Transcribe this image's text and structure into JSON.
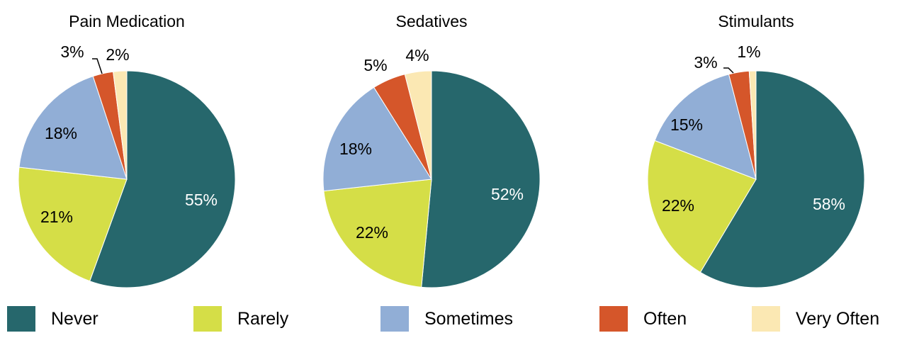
{
  "chart_data": [
    {
      "type": "pie",
      "title": "Pain Medication",
      "categories": [
        "Never",
        "Rarely",
        "Sometimes",
        "Often",
        "Very Often"
      ],
      "values": [
        55,
        21,
        18,
        3,
        2
      ],
      "labels": [
        "55%",
        "21%",
        "18%",
        "3%",
        "2%"
      ]
    },
    {
      "type": "pie",
      "title": "Sedatives",
      "categories": [
        "Never",
        "Rarely",
        "Sometimes",
        "Often",
        "Very Often"
      ],
      "values": [
        52,
        22,
        18,
        5,
        4
      ],
      "labels": [
        "52%",
        "22%",
        "18%",
        "5%",
        "4%"
      ]
    },
    {
      "type": "pie",
      "title": "Stimulants",
      "categories": [
        "Never",
        "Rarely",
        "Sometimes",
        "Often",
        "Very Often"
      ],
      "values": [
        58,
        22,
        15,
        3,
        1
      ],
      "labels": [
        "58%",
        "22%",
        "15%",
        "3%",
        "1%"
      ]
    }
  ],
  "legend": {
    "placement": "bottom",
    "items": [
      {
        "label": "Never",
        "color": "#26676c"
      },
      {
        "label": "Rarely",
        "color": "#d5de47"
      },
      {
        "label": "Sometimes",
        "color": "#91aed6"
      },
      {
        "label": "Often",
        "color": "#d5562a"
      },
      {
        "label": "Very Often",
        "color": "#fbe8b3"
      }
    ]
  }
}
